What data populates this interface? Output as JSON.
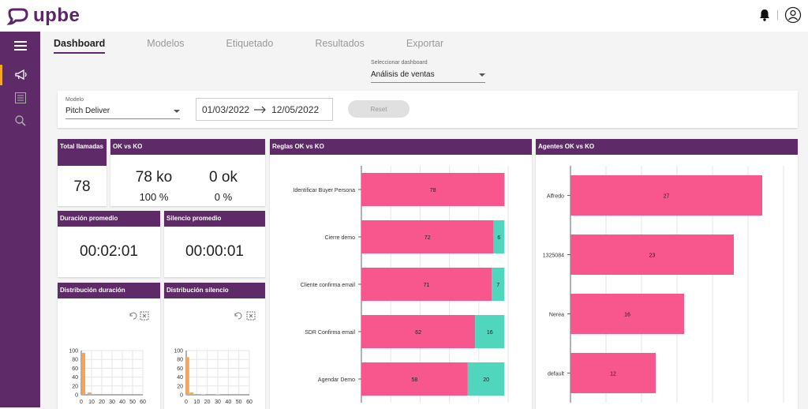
{
  "app": {
    "brand": "upbe"
  },
  "nav_tabs": [
    {
      "label": "Dashboard",
      "active": true
    },
    {
      "label": "Modelos",
      "active": false
    },
    {
      "label": "Etiquetado",
      "active": false
    },
    {
      "label": "Resultados",
      "active": false
    },
    {
      "label": "Exportar",
      "active": false
    }
  ],
  "dashboard_select": {
    "label": "Seleccionar dashboard",
    "value": "Análisis de ventas"
  },
  "filters": {
    "model_label": "Modelo",
    "model_value": "Pitch Deliver",
    "date_from": "01/03/2022",
    "date_to": "12/05/2022",
    "reset_label": "Reset"
  },
  "cards": {
    "total": {
      "title": "Total llamadas",
      "value": "78"
    },
    "okko": {
      "title": "OK vs KO",
      "ko": "78 ko",
      "ok": "0 ok",
      "ko_pct": "100 %",
      "ok_pct": "0 %"
    },
    "duracion": {
      "title": "Duración promedio",
      "value": "00:02:01"
    },
    "silencio": {
      "title": "Silencio promedio",
      "value": "00:00:01"
    },
    "dist_duracion": {
      "title": "Distribución duración"
    },
    "dist_silencio": {
      "title": "Distribución silencio"
    },
    "reglas": {
      "title": "Reglas OK vs KO"
    },
    "agentes": {
      "title": "Agentes OK vs KO"
    }
  },
  "colors": {
    "primary": "#5e2a68",
    "ko": "#f7578c",
    "ok": "#4fd6bd",
    "hist": "#f5a55a",
    "accent": "#f5a623"
  },
  "chart_data": [
    {
      "id": "reglas",
      "type": "bar",
      "orientation": "horizontal",
      "stacked": true,
      "categories": [
        "Identificar Buyer Persona",
        "Cierre demo",
        "Cliente confirma email",
        "SDR Confirma email",
        "Agendar Demo"
      ],
      "series": [
        {
          "values": [
            78,
            72,
            71,
            62,
            58
          ],
          "color": "#f7578c"
        },
        {
          "values": [
            0,
            6,
            7,
            16,
            20
          ],
          "color": "#4fd6bd"
        }
      ],
      "xlim": [
        0,
        80
      ]
    },
    {
      "id": "agentes",
      "type": "bar",
      "orientation": "horizontal",
      "categories": [
        "Alfredo",
        "1325084",
        "Nerea",
        "default"
      ],
      "series": [
        {
          "values": [
            27,
            23,
            16,
            12
          ],
          "color": "#f7578c"
        }
      ],
      "xlim": [
        0,
        30
      ]
    },
    {
      "id": "dist_duracion",
      "type": "bar",
      "x": [
        0,
        10,
        20,
        30,
        40,
        50,
        60
      ],
      "y_ticks": [
        0,
        20,
        40,
        60,
        80,
        100
      ],
      "bins": [
        {
          "x": 2,
          "y": 95
        },
        {
          "x": 8,
          "y": 5
        }
      ],
      "ylim": [
        0,
        100
      ],
      "xlim": [
        0,
        60
      ]
    },
    {
      "id": "dist_silencio",
      "type": "bar",
      "x": [
        0,
        10,
        20,
        30,
        40,
        50,
        60
      ],
      "y_ticks": [
        0,
        20,
        40,
        60,
        80,
        100
      ],
      "bins": [
        {
          "x": 1,
          "y": 85
        },
        {
          "x": 5,
          "y": 5
        },
        {
          "x": 16,
          "y": 1
        },
        {
          "x": 30,
          "y": 1
        },
        {
          "x": 48,
          "y": 2
        }
      ],
      "ylim": [
        0,
        100
      ],
      "xlim": [
        0,
        60
      ]
    }
  ]
}
